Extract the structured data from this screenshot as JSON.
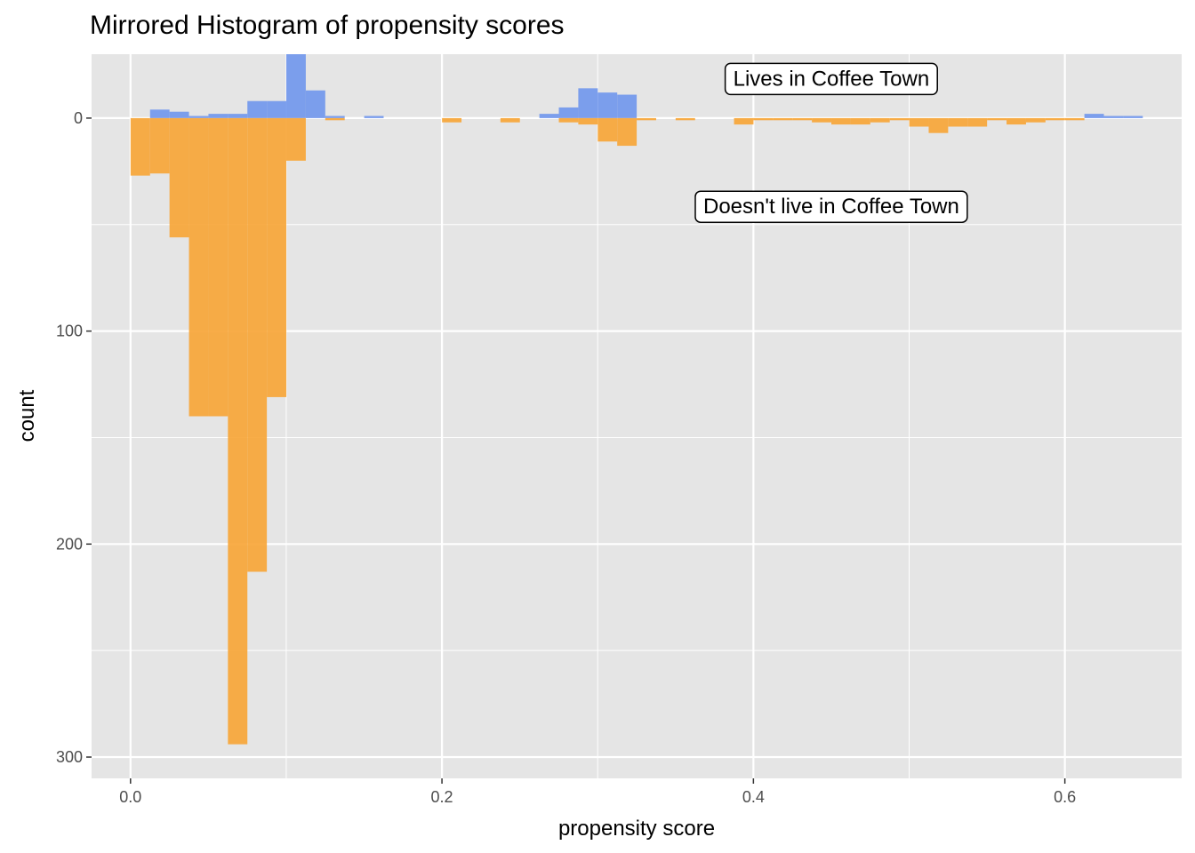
{
  "chart_data": {
    "type": "bar",
    "title": "Mirrored Histogram of propensity scores",
    "xlabel": "propensity score",
    "ylabel": "count",
    "xlim": [
      -0.025,
      0.675
    ],
    "ylim": [
      -30,
      310
    ],
    "bin_width": 0.0125,
    "x_ticks": [
      {
        "value": 0.0,
        "label": "0.0"
      },
      {
        "value": 0.2,
        "label": "0.2"
      },
      {
        "value": 0.4,
        "label": "0.4"
      },
      {
        "value": 0.6,
        "label": "0.6"
      }
    ],
    "y_ticks": [
      {
        "value": 0,
        "label": "0"
      },
      {
        "value": 100,
        "label": "100"
      },
      {
        "value": 200,
        "label": "200"
      },
      {
        "value": 300,
        "label": "300"
      }
    ],
    "grid": true,
    "legend": "none",
    "colors": {
      "panel_background": "#e5e5e5",
      "grid": "#ffffff",
      "lives": "#6f96ec",
      "doesnt_live": "#f7a434"
    },
    "series": [
      {
        "name": "Lives in Coffee Town",
        "color": "#6f96ec",
        "direction": "up",
        "bins": [
          {
            "x": 0.0188,
            "count": 4
          },
          {
            "x": 0.0313,
            "count": 3
          },
          {
            "x": 0.0438,
            "count": 1
          },
          {
            "x": 0.0563,
            "count": 2
          },
          {
            "x": 0.0688,
            "count": 2
          },
          {
            "x": 0.0813,
            "count": 8
          },
          {
            "x": 0.0938,
            "count": 8
          },
          {
            "x": 0.1063,
            "count": 30
          },
          {
            "x": 0.1188,
            "count": 13
          },
          {
            "x": 0.1313,
            "count": 1
          },
          {
            "x": 0.1563,
            "count": 1
          },
          {
            "x": 0.2688,
            "count": 2
          },
          {
            "x": 0.2813,
            "count": 5
          },
          {
            "x": 0.2938,
            "count": 14
          },
          {
            "x": 0.3063,
            "count": 12
          },
          {
            "x": 0.3188,
            "count": 11
          },
          {
            "x": 0.6188,
            "count": 2
          },
          {
            "x": 0.6313,
            "count": 1
          },
          {
            "x": 0.6438,
            "count": 1
          }
        ]
      },
      {
        "name": "Doesn't live in Coffee Town",
        "color": "#f7a434",
        "direction": "down",
        "bins": [
          {
            "x": 0.0063,
            "count": 27
          },
          {
            "x": 0.0188,
            "count": 26
          },
          {
            "x": 0.0313,
            "count": 56
          },
          {
            "x": 0.0438,
            "count": 140
          },
          {
            "x": 0.0563,
            "count": 140
          },
          {
            "x": 0.0688,
            "count": 294
          },
          {
            "x": 0.0813,
            "count": 213
          },
          {
            "x": 0.0938,
            "count": 131
          },
          {
            "x": 0.1063,
            "count": 20
          },
          {
            "x": 0.1313,
            "count": 1
          },
          {
            "x": 0.2063,
            "count": 2
          },
          {
            "x": 0.2438,
            "count": 2
          },
          {
            "x": 0.2813,
            "count": 2
          },
          {
            "x": 0.2938,
            "count": 3
          },
          {
            "x": 0.3063,
            "count": 11
          },
          {
            "x": 0.3188,
            "count": 13
          },
          {
            "x": 0.3313,
            "count": 1
          },
          {
            "x": 0.3563,
            "count": 1
          },
          {
            "x": 0.3938,
            "count": 3
          },
          {
            "x": 0.4063,
            "count": 1
          },
          {
            "x": 0.4188,
            "count": 1
          },
          {
            "x": 0.4313,
            "count": 1
          },
          {
            "x": 0.4438,
            "count": 2
          },
          {
            "x": 0.4563,
            "count": 3
          },
          {
            "x": 0.4688,
            "count": 3
          },
          {
            "x": 0.4813,
            "count": 2
          },
          {
            "x": 0.4938,
            "count": 1
          },
          {
            "x": 0.5063,
            "count": 4
          },
          {
            "x": 0.5188,
            "count": 7
          },
          {
            "x": 0.5313,
            "count": 4
          },
          {
            "x": 0.5438,
            "count": 4
          },
          {
            "x": 0.5563,
            "count": 1
          },
          {
            "x": 0.5688,
            "count": 3
          },
          {
            "x": 0.5813,
            "count": 2
          },
          {
            "x": 0.5938,
            "count": 1
          },
          {
            "x": 0.6063,
            "count": 1
          }
        ]
      }
    ],
    "annotations": [
      {
        "text": "Lives in Coffee Town",
        "x": 0.45,
        "y": -19
      },
      {
        "text": "Doesn't live in Coffee Town",
        "x": 0.45,
        "y": 41
      }
    ]
  }
}
